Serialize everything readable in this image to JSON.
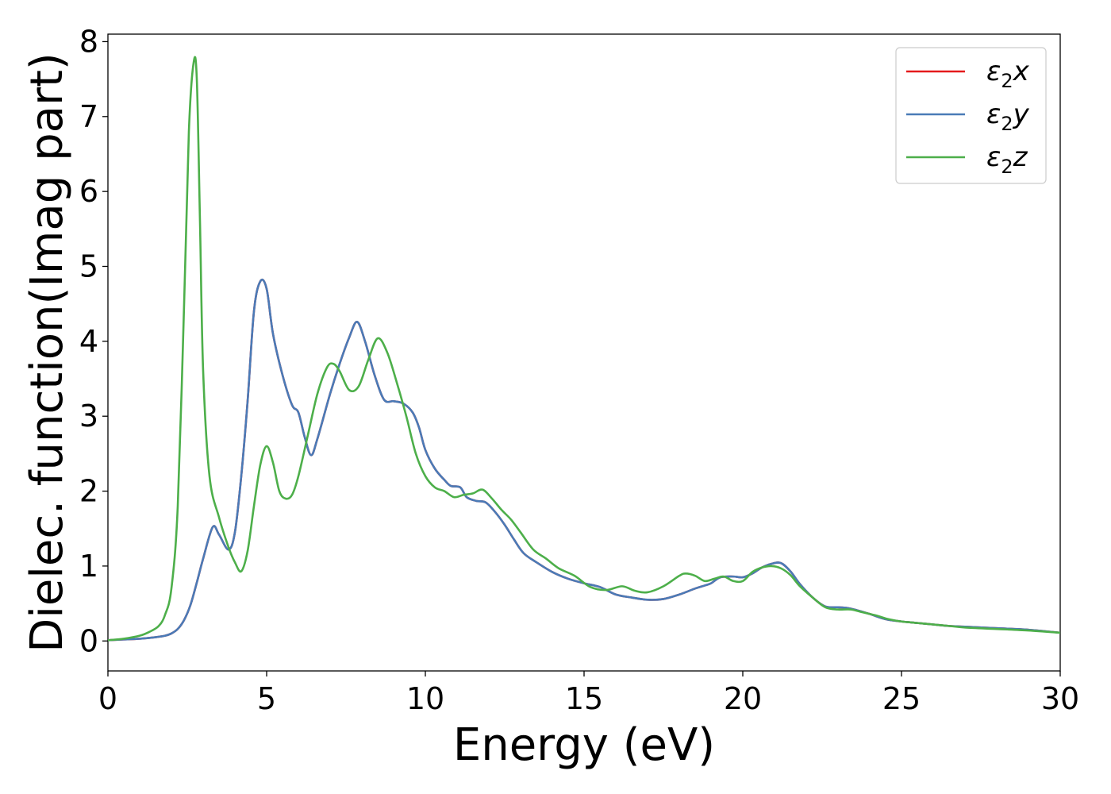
{
  "chart_data": {
    "type": "line",
    "title": "",
    "xlabel": "Energy (eV)",
    "ylabel": "Dielec. function(Imag part)",
    "xlim": [
      0,
      30
    ],
    "ylim": [
      -0.4,
      8.1
    ],
    "xticks": [
      0,
      5,
      10,
      15,
      20,
      25,
      30
    ],
    "yticks": [
      0,
      1,
      2,
      3,
      4,
      5,
      6,
      7,
      8
    ],
    "xtick_labels": [
      "0",
      "5",
      "10",
      "15",
      "20",
      "25",
      "30"
    ],
    "ytick_labels": [
      "0",
      "1",
      "2",
      "3",
      "4",
      "5",
      "6",
      "7",
      "8"
    ],
    "grid": false,
    "legend_position": "top-right",
    "series": [
      {
        "name": "ε2x",
        "legend_main": "ε",
        "legend_sub": "2",
        "legend_suffix": "x",
        "color": "#e41a1c",
        "x": [
          0,
          0.5,
          1.0,
          1.5,
          1.8,
          2.0,
          2.2,
          2.4,
          2.6,
          2.8,
          3.0,
          3.3,
          3.5,
          3.8,
          4.0,
          4.2,
          4.4,
          4.6,
          4.8,
          5.0,
          5.2,
          5.5,
          5.8,
          6.0,
          6.2,
          6.4,
          6.6,
          7.0,
          7.3,
          7.6,
          7.85,
          8.1,
          8.4,
          8.7,
          9.0,
          9.3,
          9.6,
          9.8,
          10.0,
          10.3,
          10.6,
          10.8,
          11.1,
          11.3,
          11.6,
          11.9,
          12.2,
          12.5,
          12.8,
          13.1,
          13.5,
          14.0,
          14.5,
          15.0,
          15.5,
          16.0,
          16.5,
          17.0,
          17.5,
          18.0,
          18.5,
          18.8,
          19.0,
          19.3,
          19.7,
          20.0,
          20.3,
          20.6,
          20.9,
          21.2,
          21.5,
          21.8,
          22.2,
          22.6,
          23.0,
          23.3,
          23.6,
          24.0,
          24.5,
          25.0,
          25.5,
          26.0,
          26.5,
          27.0,
          28.0,
          29.0,
          30.0
        ],
        "y": [
          0.01,
          0.02,
          0.03,
          0.05,
          0.07,
          0.1,
          0.16,
          0.28,
          0.48,
          0.78,
          1.1,
          1.52,
          1.42,
          1.22,
          1.45,
          2.2,
          3.2,
          4.4,
          4.8,
          4.7,
          4.1,
          3.55,
          3.15,
          3.05,
          2.72,
          2.48,
          2.7,
          3.3,
          3.7,
          4.05,
          4.26,
          4.0,
          3.55,
          3.22,
          3.2,
          3.17,
          3.05,
          2.85,
          2.55,
          2.3,
          2.15,
          2.07,
          2.05,
          1.92,
          1.87,
          1.85,
          1.72,
          1.55,
          1.35,
          1.17,
          1.05,
          0.92,
          0.83,
          0.77,
          0.72,
          0.62,
          0.58,
          0.55,
          0.56,
          0.62,
          0.7,
          0.74,
          0.77,
          0.85,
          0.86,
          0.85,
          0.9,
          0.98,
          1.03,
          1.04,
          0.93,
          0.76,
          0.58,
          0.46,
          0.45,
          0.44,
          0.41,
          0.36,
          0.29,
          0.26,
          0.24,
          0.22,
          0.2,
          0.19,
          0.17,
          0.15,
          0.11
        ]
      },
      {
        "name": "ε2y",
        "legend_main": "ε",
        "legend_sub": "2",
        "legend_suffix": "y",
        "color": "#4a7bb7",
        "x": [
          0,
          0.5,
          1.0,
          1.5,
          1.8,
          2.0,
          2.2,
          2.4,
          2.6,
          2.8,
          3.0,
          3.3,
          3.5,
          3.8,
          4.0,
          4.2,
          4.4,
          4.6,
          4.8,
          5.0,
          5.2,
          5.5,
          5.8,
          6.0,
          6.2,
          6.4,
          6.6,
          7.0,
          7.3,
          7.6,
          7.85,
          8.1,
          8.4,
          8.7,
          9.0,
          9.3,
          9.6,
          9.8,
          10.0,
          10.3,
          10.6,
          10.8,
          11.1,
          11.3,
          11.6,
          11.9,
          12.2,
          12.5,
          12.8,
          13.1,
          13.5,
          14.0,
          14.5,
          15.0,
          15.5,
          16.0,
          16.5,
          17.0,
          17.5,
          18.0,
          18.5,
          18.8,
          19.0,
          19.3,
          19.7,
          20.0,
          20.3,
          20.6,
          20.9,
          21.2,
          21.5,
          21.8,
          22.2,
          22.6,
          23.0,
          23.3,
          23.6,
          24.0,
          24.5,
          25.0,
          25.5,
          26.0,
          26.5,
          27.0,
          28.0,
          29.0,
          30.0
        ],
        "y": [
          0.01,
          0.02,
          0.03,
          0.05,
          0.07,
          0.1,
          0.16,
          0.28,
          0.48,
          0.78,
          1.1,
          1.52,
          1.42,
          1.22,
          1.45,
          2.2,
          3.2,
          4.4,
          4.8,
          4.7,
          4.1,
          3.55,
          3.15,
          3.05,
          2.72,
          2.48,
          2.7,
          3.3,
          3.7,
          4.05,
          4.26,
          4.0,
          3.55,
          3.22,
          3.2,
          3.17,
          3.05,
          2.85,
          2.55,
          2.3,
          2.15,
          2.07,
          2.05,
          1.92,
          1.87,
          1.85,
          1.72,
          1.55,
          1.35,
          1.17,
          1.05,
          0.92,
          0.83,
          0.77,
          0.72,
          0.62,
          0.58,
          0.55,
          0.56,
          0.62,
          0.7,
          0.74,
          0.77,
          0.85,
          0.86,
          0.85,
          0.9,
          0.98,
          1.03,
          1.04,
          0.93,
          0.76,
          0.58,
          0.46,
          0.45,
          0.44,
          0.41,
          0.36,
          0.29,
          0.26,
          0.24,
          0.22,
          0.2,
          0.19,
          0.17,
          0.15,
          0.11
        ]
      },
      {
        "name": "ε2z",
        "legend_main": "ε",
        "legend_sub": "2",
        "legend_suffix": "z",
        "color": "#4daf4a",
        "x": [
          0,
          0.5,
          1.0,
          1.3,
          1.6,
          1.8,
          2.0,
          2.2,
          2.4,
          2.55,
          2.7,
          2.8,
          2.9,
          3.0,
          3.2,
          3.5,
          3.8,
          4.0,
          4.2,
          4.4,
          4.6,
          4.8,
          5.0,
          5.2,
          5.4,
          5.6,
          5.8,
          6.0,
          6.3,
          6.6,
          6.9,
          7.1,
          7.3,
          7.6,
          7.9,
          8.2,
          8.5,
          8.8,
          9.1,
          9.4,
          9.7,
          10.0,
          10.3,
          10.6,
          10.9,
          11.2,
          11.5,
          11.8,
          12.1,
          12.4,
          12.7,
          13.0,
          13.4,
          13.8,
          14.2,
          14.7,
          15.2,
          15.7,
          16.2,
          16.6,
          17.0,
          17.5,
          18.0,
          18.2,
          18.5,
          18.8,
          19.1,
          19.4,
          19.7,
          20.0,
          20.3,
          20.6,
          20.9,
          21.2,
          21.5,
          21.8,
          22.2,
          22.6,
          23.0,
          23.4,
          23.8,
          24.2,
          24.6,
          25.0,
          25.5,
          26.0,
          26.5,
          27.0,
          28.0,
          29.0,
          30.0
        ],
        "y": [
          0.01,
          0.03,
          0.07,
          0.12,
          0.2,
          0.35,
          0.7,
          1.8,
          4.5,
          6.8,
          7.72,
          7.5,
          5.6,
          3.6,
          2.2,
          1.65,
          1.25,
          1.05,
          0.93,
          1.2,
          1.8,
          2.35,
          2.6,
          2.38,
          2.0,
          1.9,
          1.95,
          2.2,
          2.75,
          3.3,
          3.65,
          3.7,
          3.6,
          3.35,
          3.4,
          3.75,
          4.04,
          3.85,
          3.45,
          3.0,
          2.5,
          2.2,
          2.05,
          2.0,
          1.92,
          1.95,
          1.97,
          2.02,
          1.9,
          1.75,
          1.62,
          1.45,
          1.22,
          1.1,
          0.97,
          0.87,
          0.72,
          0.68,
          0.73,
          0.67,
          0.65,
          0.73,
          0.87,
          0.9,
          0.87,
          0.8,
          0.83,
          0.86,
          0.8,
          0.8,
          0.92,
          0.98,
          1.0,
          0.97,
          0.88,
          0.73,
          0.58,
          0.45,
          0.42,
          0.42,
          0.38,
          0.34,
          0.29,
          0.26,
          0.24,
          0.22,
          0.2,
          0.18,
          0.16,
          0.14,
          0.11
        ]
      }
    ]
  }
}
